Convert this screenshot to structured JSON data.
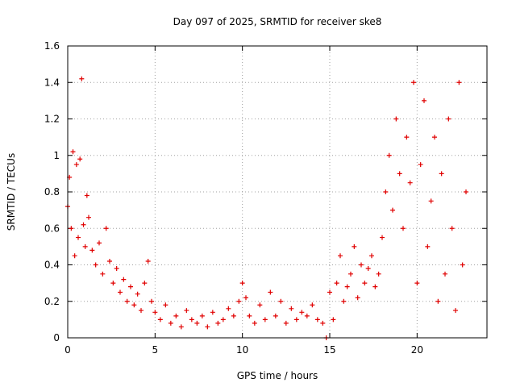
{
  "chart_data": {
    "type": "scatter",
    "title": "Day 097 of 2025, SRMTID for receiver ske8",
    "xlabel": "GPS time / hours",
    "ylabel": "SRMTID / TECUs",
    "xlim": [
      0,
      24
    ],
    "ylim": [
      0,
      1.6
    ],
    "xticks": [
      0,
      5,
      10,
      15,
      20
    ],
    "xtick_labels": [
      "0",
      "5",
      "10",
      "15",
      "20"
    ],
    "yticks": [
      0,
      0.2,
      0.4,
      0.6,
      0.8,
      1.0,
      1.2,
      1.4,
      1.6
    ],
    "ytick_labels": [
      "0",
      "0.2",
      "0.4",
      "0.6",
      "0.8",
      "1",
      "1.2",
      "1.4",
      "1.6"
    ],
    "grid": true,
    "marker": "+",
    "color": "#e00000",
    "series": [
      {
        "name": "SRMTID",
        "x": [
          0.0,
          0.1,
          0.2,
          0.3,
          0.4,
          0.5,
          0.6,
          0.7,
          0.8,
          0.9,
          1.0,
          1.1,
          1.2,
          1.4,
          1.6,
          1.8,
          2.0,
          2.2,
          2.4,
          2.6,
          2.8,
          3.0,
          3.2,
          3.4,
          3.6,
          3.8,
          4.0,
          4.2,
          4.4,
          4.6,
          4.8,
          5.0,
          5.3,
          5.6,
          5.9,
          6.2,
          6.5,
          6.8,
          7.1,
          7.4,
          7.7,
          8.0,
          8.3,
          8.6,
          8.9,
          9.2,
          9.5,
          9.8,
          10.0,
          10.2,
          10.4,
          10.7,
          11.0,
          11.3,
          11.6,
          11.9,
          12.2,
          12.5,
          12.8,
          13.1,
          13.4,
          13.7,
          14.0,
          14.3,
          14.6,
          14.8,
          15.0,
          15.2,
          15.4,
          15.6,
          15.8,
          16.0,
          16.2,
          16.4,
          16.6,
          16.8,
          17.0,
          17.2,
          17.4,
          17.6,
          17.8,
          18.0,
          18.2,
          18.4,
          18.6,
          18.8,
          19.0,
          19.2,
          19.4,
          19.6,
          19.8,
          20.0,
          20.2,
          20.4,
          20.6,
          20.8,
          21.0,
          21.2,
          21.4,
          21.6,
          21.8,
          22.0,
          22.2,
          22.4,
          22.6,
          22.8
        ],
        "y": [
          0.72,
          0.88,
          0.6,
          1.02,
          0.45,
          0.95,
          0.55,
          0.98,
          1.42,
          0.62,
          0.5,
          0.78,
          0.66,
          0.48,
          0.4,
          0.52,
          0.35,
          0.6,
          0.42,
          0.3,
          0.38,
          0.25,
          0.32,
          0.2,
          0.28,
          0.18,
          0.24,
          0.15,
          0.3,
          0.42,
          0.2,
          0.14,
          0.1,
          0.18,
          0.08,
          0.12,
          0.06,
          0.15,
          0.1,
          0.08,
          0.12,
          0.06,
          0.14,
          0.08,
          0.1,
          0.16,
          0.12,
          0.2,
          0.3,
          0.22,
          0.12,
          0.08,
          0.18,
          0.1,
          0.25,
          0.12,
          0.2,
          0.08,
          0.16,
          0.1,
          0.14,
          0.12,
          0.18,
          0.1,
          0.08,
          0.0,
          0.25,
          0.1,
          0.3,
          0.45,
          0.2,
          0.28,
          0.35,
          0.5,
          0.22,
          0.4,
          0.3,
          0.38,
          0.45,
          0.28,
          0.35,
          0.55,
          0.8,
          1.0,
          0.7,
          1.2,
          0.9,
          0.6,
          1.1,
          0.85,
          1.4,
          0.3,
          0.95,
          1.3,
          0.5,
          0.75,
          1.1,
          0.2,
          0.9,
          0.35,
          1.2,
          0.6,
          0.15,
          1.4,
          0.4,
          0.8
        ]
      }
    ]
  }
}
